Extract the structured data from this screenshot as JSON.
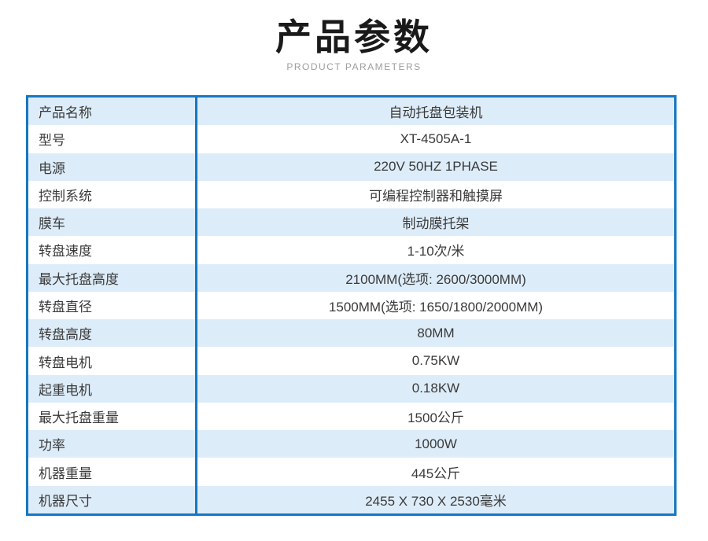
{
  "header": {
    "title": "产品参数",
    "subtitle": "PRODUCT PARAMETERS"
  },
  "table": {
    "columns": [
      "parameter",
      "value"
    ],
    "rows": [
      {
        "label": "产品名称",
        "value": "自动托盘包装机"
      },
      {
        "label": "型号",
        "value": "XT-4505A-1"
      },
      {
        "label": "电源",
        "value": "220V 50HZ 1PHASE"
      },
      {
        "label": "控制系统",
        "value": "可编程控制器和触摸屏"
      },
      {
        "label": "膜车",
        "value": "制动膜托架"
      },
      {
        "label": "转盘速度",
        "value": "1-10次/米"
      },
      {
        "label": "最大托盘高度",
        "value": "2100MM(选项: 2600/3000MM)"
      },
      {
        "label": "转盘直径",
        "value": "1500MM(选项: 1650/1800/2000MM)"
      },
      {
        "label": "转盘高度",
        "value": "80MM"
      },
      {
        "label": "转盘电机",
        "value": "0.75KW"
      },
      {
        "label": "起重电机",
        "value": "0.18KW"
      },
      {
        "label": "最大托盘重量",
        "value": "1500公斤"
      },
      {
        "label": "功率",
        "value": "1000W"
      },
      {
        "label": "机器重量",
        "value": "445公斤"
      },
      {
        "label": "机器尺寸",
        "value": "2455 X 730 X 2530毫米"
      }
    ]
  },
  "colors": {
    "table_border": "#1577c2",
    "row_alternate": "#ddecf9",
    "row_base": "#ffffff",
    "title_text": "#1a1a1a",
    "subtitle_text": "#9e9e9e",
    "body_text": "#3a3a3a"
  }
}
